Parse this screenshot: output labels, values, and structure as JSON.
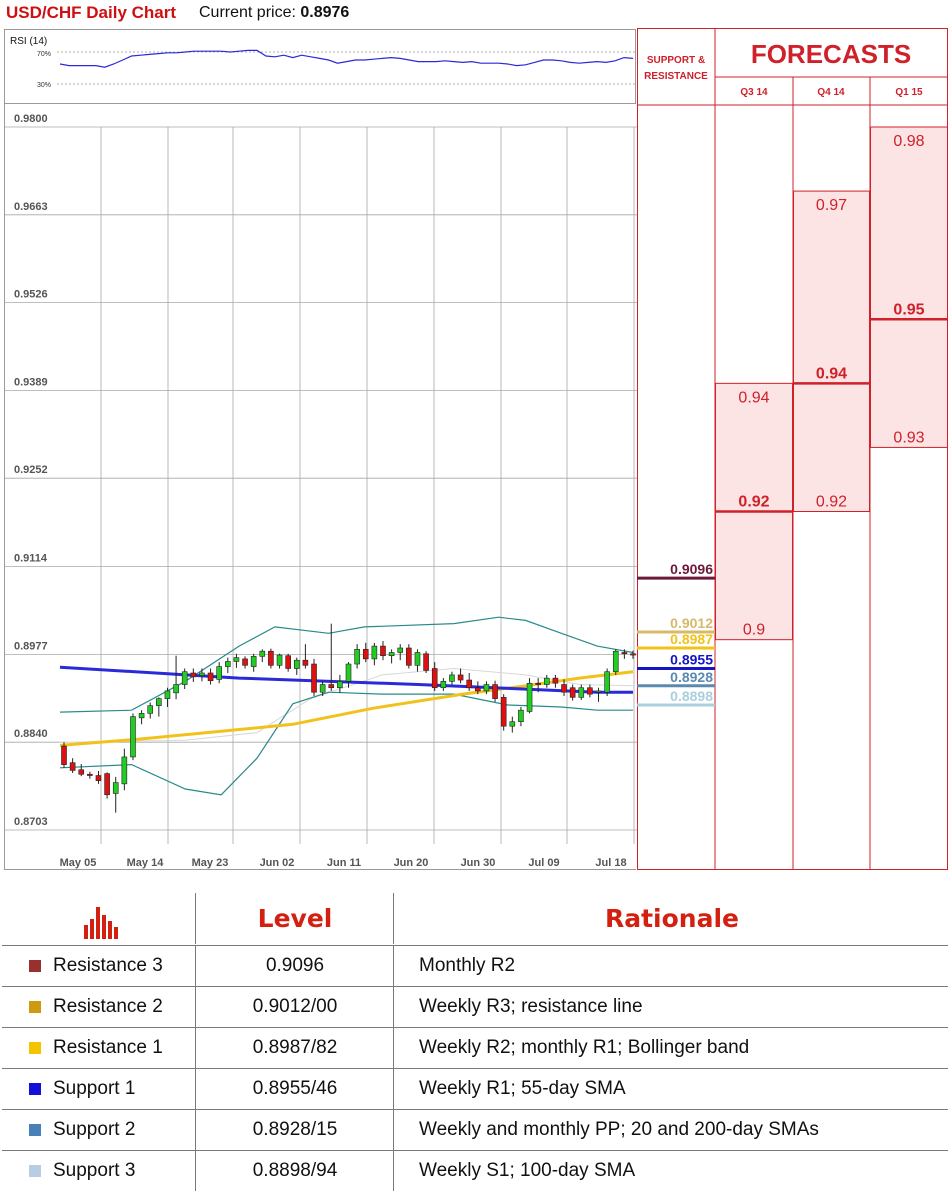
{
  "header": {
    "title": "USD/CHF Daily Chart",
    "price_label": "Current price:",
    "price_value": "0.8976"
  },
  "rsi": {
    "label": "RSI (14)",
    "level_high": "70%",
    "level_low": "30%",
    "values": [
      55,
      53,
      53,
      53,
      53,
      51,
      55,
      60,
      65,
      66,
      67,
      68,
      69,
      69,
      70,
      71,
      71,
      71,
      71,
      70,
      71,
      72,
      72,
      65,
      64,
      66,
      63,
      66,
      64,
      62,
      60,
      56,
      58,
      60,
      60,
      61,
      62,
      63,
      62,
      60,
      58,
      58,
      58,
      59,
      58,
      57,
      58,
      56,
      56,
      56,
      55,
      53,
      54,
      57,
      60,
      60,
      59,
      57,
      56,
      57,
      58,
      57,
      59,
      63,
      62
    ]
  },
  "chart_data": {
    "type": "candlestick",
    "title": "USD/CHF Daily Chart",
    "ylim": [
      0.8703,
      0.98
    ],
    "y_ticks": [
      "0.9800",
      "0.9663",
      "0.9526",
      "0.9389",
      "0.9252",
      "0.9114",
      "0.8977",
      "0.8840",
      "0.8703"
    ],
    "x_ticks": [
      "May 05",
      "May 14",
      "May 23",
      "Jun 02",
      "Jun 11",
      "Jun 20",
      "Jun 30",
      "Jul 09",
      "Jul 18"
    ],
    "candles": [
      {
        "o": 0.8834,
        "h": 0.884,
        "l": 0.88,
        "c": 0.8805
      },
      {
        "o": 0.8808,
        "h": 0.8815,
        "l": 0.8792,
        "c": 0.8796
      },
      {
        "o": 0.8797,
        "h": 0.8806,
        "l": 0.8787,
        "c": 0.879
      },
      {
        "o": 0.879,
        "h": 0.8794,
        "l": 0.8783,
        "c": 0.8788
      },
      {
        "o": 0.8788,
        "h": 0.8795,
        "l": 0.8775,
        "c": 0.878
      },
      {
        "o": 0.8791,
        "h": 0.8793,
        "l": 0.8752,
        "c": 0.8758
      },
      {
        "o": 0.876,
        "h": 0.8786,
        "l": 0.873,
        "c": 0.8777
      },
      {
        "o": 0.8775,
        "h": 0.883,
        "l": 0.8765,
        "c": 0.8817
      },
      {
        "o": 0.8817,
        "h": 0.8885,
        "l": 0.8812,
        "c": 0.888
      },
      {
        "o": 0.8878,
        "h": 0.889,
        "l": 0.8868,
        "c": 0.8885
      },
      {
        "o": 0.8885,
        "h": 0.8902,
        "l": 0.8877,
        "c": 0.8897
      },
      {
        "o": 0.8897,
        "h": 0.891,
        "l": 0.888,
        "c": 0.8908
      },
      {
        "o": 0.8908,
        "h": 0.8925,
        "l": 0.8895,
        "c": 0.892
      },
      {
        "o": 0.8917,
        "h": 0.8975,
        "l": 0.8907,
        "c": 0.893
      },
      {
        "o": 0.893,
        "h": 0.8955,
        "l": 0.8923,
        "c": 0.895
      },
      {
        "o": 0.8948,
        "h": 0.8955,
        "l": 0.8934,
        "c": 0.8942
      },
      {
        "o": 0.8944,
        "h": 0.8955,
        "l": 0.8935,
        "c": 0.8948
      },
      {
        "o": 0.8948,
        "h": 0.8955,
        "l": 0.893,
        "c": 0.8936
      },
      {
        "o": 0.8938,
        "h": 0.8965,
        "l": 0.8932,
        "c": 0.8958
      },
      {
        "o": 0.8958,
        "h": 0.8972,
        "l": 0.8948,
        "c": 0.8966
      },
      {
        "o": 0.8966,
        "h": 0.8978,
        "l": 0.8956,
        "c": 0.8972
      },
      {
        "o": 0.897,
        "h": 0.8974,
        "l": 0.8955,
        "c": 0.896
      },
      {
        "o": 0.8958,
        "h": 0.8978,
        "l": 0.895,
        "c": 0.8974
      },
      {
        "o": 0.8974,
        "h": 0.8985,
        "l": 0.8965,
        "c": 0.8982
      },
      {
        "o": 0.8982,
        "h": 0.8986,
        "l": 0.8955,
        "c": 0.896
      },
      {
        "o": 0.896,
        "h": 0.8978,
        "l": 0.8955,
        "c": 0.8976
      },
      {
        "o": 0.8975,
        "h": 0.8978,
        "l": 0.895,
        "c": 0.8955
      },
      {
        "o": 0.8955,
        "h": 0.8972,
        "l": 0.8945,
        "c": 0.8968
      },
      {
        "o": 0.8968,
        "h": 0.8993,
        "l": 0.8955,
        "c": 0.896
      },
      {
        "o": 0.8962,
        "h": 0.897,
        "l": 0.8912,
        "c": 0.8918
      },
      {
        "o": 0.8918,
        "h": 0.8935,
        "l": 0.8912,
        "c": 0.893
      },
      {
        "o": 0.893,
        "h": 0.9025,
        "l": 0.892,
        "c": 0.8925
      },
      {
        "o": 0.8925,
        "h": 0.8945,
        "l": 0.8917,
        "c": 0.8935
      },
      {
        "o": 0.8935,
        "h": 0.8965,
        "l": 0.8925,
        "c": 0.8962
      },
      {
        "o": 0.8962,
        "h": 0.8993,
        "l": 0.8955,
        "c": 0.8985
      },
      {
        "o": 0.8985,
        "h": 0.8995,
        "l": 0.8965,
        "c": 0.897
      },
      {
        "o": 0.897,
        "h": 0.8995,
        "l": 0.896,
        "c": 0.899
      },
      {
        "o": 0.899,
        "h": 0.8998,
        "l": 0.8968,
        "c": 0.8975
      },
      {
        "o": 0.8975,
        "h": 0.8985,
        "l": 0.8963,
        "c": 0.898
      },
      {
        "o": 0.898,
        "h": 0.8993,
        "l": 0.8968,
        "c": 0.8987
      },
      {
        "o": 0.8987,
        "h": 0.8993,
        "l": 0.8955,
        "c": 0.896
      },
      {
        "o": 0.896,
        "h": 0.8985,
        "l": 0.895,
        "c": 0.898
      },
      {
        "o": 0.8978,
        "h": 0.8982,
        "l": 0.8948,
        "c": 0.8952
      },
      {
        "o": 0.8955,
        "h": 0.8965,
        "l": 0.892,
        "c": 0.8925
      },
      {
        "o": 0.8925,
        "h": 0.894,
        "l": 0.892,
        "c": 0.8935
      },
      {
        "o": 0.8935,
        "h": 0.895,
        "l": 0.893,
        "c": 0.8945
      },
      {
        "o": 0.8945,
        "h": 0.8955,
        "l": 0.8932,
        "c": 0.8937
      },
      {
        "o": 0.8937,
        "h": 0.8948,
        "l": 0.892,
        "c": 0.8925
      },
      {
        "o": 0.8925,
        "h": 0.8935,
        "l": 0.8915,
        "c": 0.892
      },
      {
        "o": 0.892,
        "h": 0.8935,
        "l": 0.8915,
        "c": 0.893
      },
      {
        "o": 0.893,
        "h": 0.8936,
        "l": 0.8903,
        "c": 0.8908
      },
      {
        "o": 0.891,
        "h": 0.8915,
        "l": 0.8858,
        "c": 0.8865
      },
      {
        "o": 0.8865,
        "h": 0.888,
        "l": 0.8855,
        "c": 0.8872
      },
      {
        "o": 0.8872,
        "h": 0.8895,
        "l": 0.8865,
        "c": 0.889
      },
      {
        "o": 0.8888,
        "h": 0.894,
        "l": 0.8885,
        "c": 0.8932
      },
      {
        "o": 0.8932,
        "h": 0.894,
        "l": 0.8918,
        "c": 0.893
      },
      {
        "o": 0.893,
        "h": 0.8945,
        "l": 0.8925,
        "c": 0.894
      },
      {
        "o": 0.894,
        "h": 0.8945,
        "l": 0.8925,
        "c": 0.8932
      },
      {
        "o": 0.893,
        "h": 0.8938,
        "l": 0.8912,
        "c": 0.8918
      },
      {
        "o": 0.8925,
        "h": 0.893,
        "l": 0.8905,
        "c": 0.891
      },
      {
        "o": 0.891,
        "h": 0.893,
        "l": 0.8906,
        "c": 0.8925
      },
      {
        "o": 0.8925,
        "h": 0.893,
        "l": 0.891,
        "c": 0.8915
      },
      {
        "o": 0.8918,
        "h": 0.8925,
        "l": 0.8903,
        "c": 0.892
      },
      {
        "o": 0.8918,
        "h": 0.8955,
        "l": 0.8912,
        "c": 0.895
      },
      {
        "o": 0.895,
        "h": 0.8985,
        "l": 0.8945,
        "c": 0.8982
      },
      {
        "o": 0.898,
        "h": 0.8985,
        "l": 0.897,
        "c": 0.8978
      },
      {
        "o": 0.8978,
        "h": 0.8983,
        "l": 0.897,
        "c": 0.8976
      }
    ],
    "series": [
      {
        "color": "#2a2ad8",
        "values": [
          [
            0,
            0.8957
          ],
          [
            20,
            0.894
          ],
          [
            40,
            0.893
          ],
          [
            60,
            0.8918
          ],
          [
            64,
            0.8918
          ]
        ]
      },
      {
        "color": "#f2c21a",
        "values": [
          [
            0,
            0.8835
          ],
          [
            9,
            0.8845
          ],
          [
            18,
            0.8857
          ],
          [
            26,
            0.8868
          ],
          [
            35,
            0.8893
          ],
          [
            45,
            0.8915
          ],
          [
            52,
            0.8928
          ],
          [
            58,
            0.894
          ],
          [
            64,
            0.895
          ]
        ]
      },
      {
        "color": "#2a8a8a",
        "values": [
          [
            0,
            0.8887
          ],
          [
            8,
            0.889
          ],
          [
            14,
            0.8935
          ],
          [
            20,
            0.899
          ],
          [
            24,
            0.902
          ],
          [
            30,
            0.901
          ],
          [
            34,
            0.902
          ],
          [
            44,
            0.9025
          ],
          [
            49,
            0.9035
          ],
          [
            52,
            0.903
          ],
          [
            56,
            0.901
          ],
          [
            60,
            0.899
          ],
          [
            64,
            0.898
          ]
        ]
      },
      {
        "color": "#2a8a8a",
        "values": [
          [
            0,
            0.88
          ],
          [
            8,
            0.8805
          ],
          [
            14,
            0.8767
          ],
          [
            18,
            0.8758
          ],
          [
            22,
            0.8815
          ],
          [
            26,
            0.89
          ],
          [
            30,
            0.8918
          ],
          [
            36,
            0.8915
          ],
          [
            44,
            0.8915
          ],
          [
            50,
            0.8898
          ],
          [
            56,
            0.8895
          ],
          [
            60,
            0.889
          ],
          [
            64,
            0.889
          ]
        ]
      },
      {
        "color": "#d8d8d8",
        "values": [
          [
            0,
            0.884
          ],
          [
            14,
            0.8843
          ],
          [
            22,
            0.8855
          ],
          [
            28,
            0.8908
          ],
          [
            36,
            0.8945
          ],
          [
            44,
            0.8955
          ],
          [
            52,
            0.8945
          ],
          [
            58,
            0.893
          ],
          [
            64,
            0.8928
          ]
        ]
      }
    ]
  },
  "support_resistance": {
    "header_line1": "SUPPORT &",
    "header_line2": "RESISTANCE",
    "levels": [
      {
        "label": "0.9096",
        "value": 0.9096,
        "color": "#6b1a3a"
      },
      {
        "label": "0.9012",
        "value": 0.9012,
        "color": "#d8b86a"
      },
      {
        "label": "0.8987",
        "value": 0.8987,
        "color": "#f2c21a"
      },
      {
        "label": "0.8955",
        "value": 0.8955,
        "color": "#1515c8"
      },
      {
        "label": "0.8928",
        "value": 0.8928,
        "color": "#5a8ab0"
      },
      {
        "label": "0.8898",
        "value": 0.8898,
        "color": "#a8d0dc"
      }
    ]
  },
  "forecasts": {
    "title": "FORECASTS",
    "columns": [
      {
        "label": "Q3 14",
        "high": "0.94",
        "median": "0.92",
        "low": "0.9",
        "high_value": 0.94,
        "median_value": 0.92,
        "low_value": 0.9
      },
      {
        "label": "Q4 14",
        "high": "0.97",
        "median": "0.94",
        "low": "0.92",
        "high_value": 0.97,
        "median_value": 0.94,
        "low_value": 0.92
      },
      {
        "label": "Q1 15",
        "high": "0.98",
        "median": "0.95",
        "low": "0.93",
        "high_value": 0.98,
        "median_value": 0.95,
        "low_value": 0.93
      }
    ]
  },
  "table": {
    "col_level": "Level",
    "col_rationale": "Rationale",
    "rows": [
      {
        "name": "Resistance 3",
        "color": "#983030",
        "level": "0.9096",
        "rationale": "Monthly R2"
      },
      {
        "name": "Resistance 2",
        "color": "#d09a10",
        "level": "0.9012/00",
        "rationale": "Weekly R3; resistance line"
      },
      {
        "name": "Resistance 1",
        "color": "#f5c400",
        "level": "0.8987/82",
        "rationale": "Weekly R2; monthly R1; Bollinger band"
      },
      {
        "name": "Support 1",
        "color": "#1010d8",
        "level": "0.8955/46",
        "rationale": "Weekly R1; 55-day SMA"
      },
      {
        "name": "Support 2",
        "color": "#4a80b8",
        "level": "0.8928/15",
        "rationale": "Weekly and monthly PP; 20 and 200-day SMAs"
      },
      {
        "name": "Support 3",
        "color": "#b8cce4",
        "level": "0.8898/94",
        "rationale": "Weekly S1; 100-day SMA"
      }
    ]
  }
}
